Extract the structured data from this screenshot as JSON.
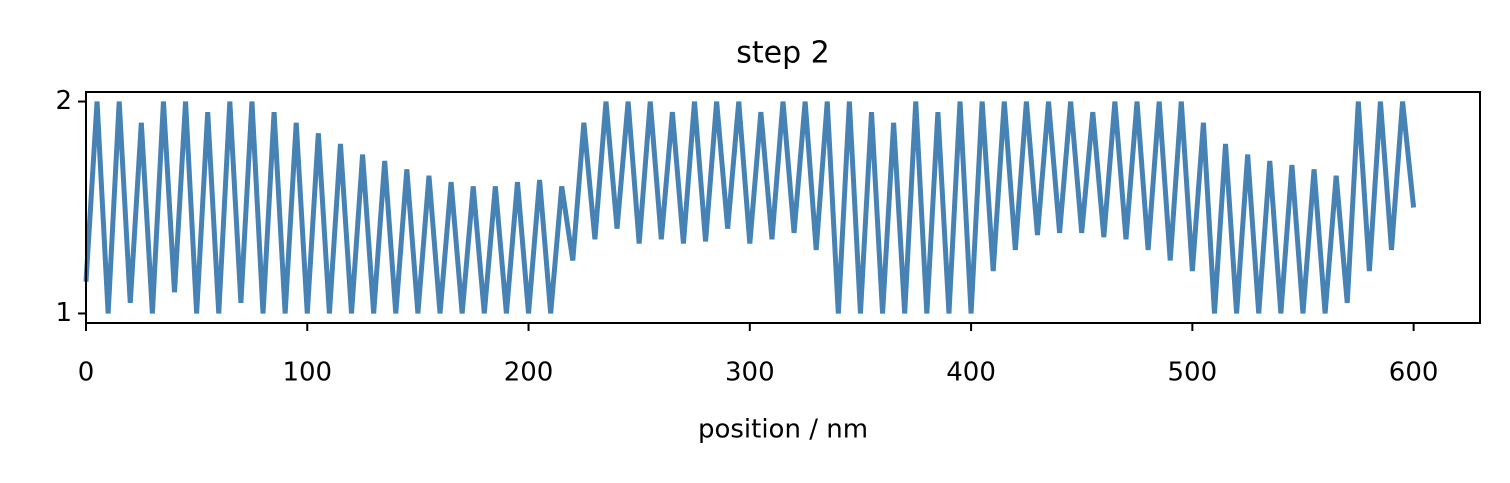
{
  "chart_data": {
    "type": "line",
    "title": "step 2",
    "xlabel": "position / nm",
    "x": [
      0,
      5,
      10,
      15,
      20,
      25,
      30,
      35,
      40,
      45,
      50,
      55,
      60,
      65,
      70,
      75,
      80,
      85,
      90,
      95,
      100,
      105,
      110,
      115,
      120,
      125,
      130,
      135,
      140,
      145,
      150,
      155,
      160,
      165,
      170,
      175,
      180,
      185,
      190,
      195,
      200,
      205,
      210,
      215,
      220,
      225,
      230,
      235,
      240,
      245,
      250,
      255,
      260,
      265,
      270,
      275,
      280,
      285,
      290,
      295,
      300,
      305,
      310,
      315,
      320,
      325,
      330,
      335,
      340,
      345,
      350,
      355,
      360,
      365,
      370,
      375,
      380,
      385,
      390,
      395,
      400,
      405,
      410,
      415,
      420,
      425,
      430,
      435,
      440,
      445,
      450,
      455,
      460,
      465,
      470,
      475,
      480,
      485,
      490,
      495,
      500,
      505,
      510,
      515,
      520,
      525,
      530,
      535,
      540,
      545,
      550,
      555,
      560,
      565,
      570,
      575,
      580,
      585,
      590,
      595,
      600
    ],
    "values": [
      1.15,
      2,
      1.0,
      2,
      1.05,
      1.9,
      1.0,
      2,
      1.1,
      2,
      1.0,
      1.95,
      1.0,
      2,
      1.05,
      2,
      1.0,
      1.95,
      1.0,
      1.9,
      1.0,
      1.85,
      1.0,
      1.8,
      1.0,
      1.75,
      1.0,
      1.72,
      1.0,
      1.68,
      1.0,
      1.65,
      1.0,
      1.62,
      1.0,
      1.6,
      1.0,
      1.6,
      1.0,
      1.62,
      1.0,
      1.63,
      1.0,
      1.6,
      1.25,
      1.9,
      1.35,
      2,
      1.4,
      2,
      1.33,
      2,
      1.35,
      1.95,
      1.33,
      2,
      1.34,
      2,
      1.4,
      2,
      1.33,
      1.95,
      1.35,
      2,
      1.38,
      2,
      1.3,
      2,
      1.0,
      2,
      1.0,
      1.95,
      1.0,
      1.9,
      1.0,
      2,
      1.0,
      1.95,
      1.0,
      2,
      1.0,
      2,
      1.2,
      2,
      1.3,
      2,
      1.37,
      2,
      1.38,
      2,
      1.38,
      1.95,
      1.36,
      2,
      1.35,
      2,
      1.3,
      2,
      1.25,
      2,
      1.2,
      1.9,
      1.0,
      1.8,
      1.0,
      1.75,
      1.0,
      1.72,
      1.0,
      1.7,
      1.0,
      1.68,
      1.0,
      1.65,
      1.05,
      2,
      1.2,
      2,
      1.3,
      2,
      1.5
    ],
    "color": "#4682b4",
    "xlim": [
      0,
      630
    ],
    "xticks": [
      0,
      100,
      200,
      300,
      400,
      500,
      600
    ],
    "ylim": [
      0.955,
      2.045
    ],
    "yticks": [
      1,
      2
    ]
  }
}
